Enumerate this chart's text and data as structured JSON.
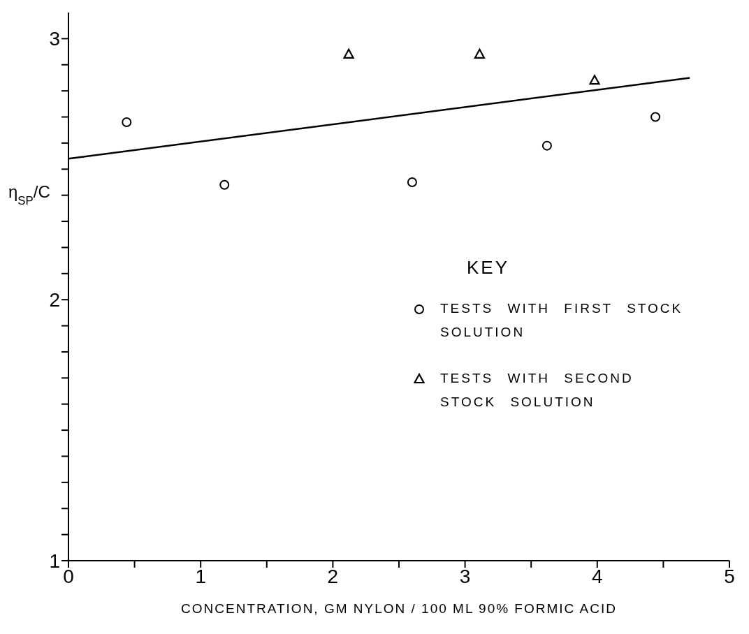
{
  "chart_data": {
    "type": "scatter",
    "xlabel": "CONCENTRATION,  GM NYLON / 100 ML 90% FORMIC ACID",
    "ylabel": "η$_{SP}$/C",
    "legend_title": "KEY",
    "legend": "right",
    "xlim": [
      0,
      5
    ],
    "ylim": [
      1,
      3.1
    ],
    "xticks": [
      0,
      {
        "value": 0.5,
        "label": null
      },
      1,
      {
        "value": 1.5,
        "label": null
      },
      2,
      {
        "value": 2.5,
        "label": null
      },
      3,
      {
        "value": 3.5,
        "label": null
      },
      4,
      {
        "value": 4.5,
        "label": null
      },
      5
    ],
    "yticks": [
      1,
      {
        "value": 1.1,
        "label": null
      },
      {
        "value": 1.2,
        "label": null
      },
      {
        "value": 1.3,
        "label": null
      },
      {
        "value": 1.4,
        "label": null
      },
      {
        "value": 1.5,
        "label": null
      },
      {
        "value": 1.6,
        "label": null
      },
      {
        "value": 1.7,
        "label": null
      },
      {
        "value": 1.8,
        "label": null
      },
      {
        "value": 1.9,
        "label": null
      },
      2,
      {
        "value": 2.1,
        "label": null
      },
      {
        "value": 2.2,
        "label": null
      },
      {
        "value": 2.3,
        "label": null
      },
      {
        "value": 2.4,
        "label": null
      },
      {
        "value": 2.5,
        "label": null
      },
      {
        "value": 2.6,
        "label": null
      },
      {
        "value": 2.7,
        "label": null
      },
      {
        "value": 2.8,
        "label": null
      },
      {
        "value": 2.9,
        "label": null
      },
      3
    ],
    "grid": false,
    "series": [
      {
        "name": "TESTS WITH FIRST STOCK SOLUTION",
        "color": "#000000",
        "marker": "circle",
        "x": [
          0.44,
          1.18,
          2.6,
          3.62,
          4.44
        ],
        "values": [
          2.68,
          2.44,
          2.45,
          2.59,
          2.7
        ]
      },
      {
        "name": "TESTS WITH SECOND STOCK SOLUTION",
        "color": "#000000",
        "marker": "triangle",
        "x": [
          2.12,
          3.11,
          3.98
        ],
        "values": [
          2.94,
          2.94,
          2.84
        ]
      },
      {
        "type": "line",
        "color": "#000000",
        "line_style": "solid",
        "marker": "none",
        "x": [
          0,
          4.7
        ],
        "values": [
          2.54,
          2.85
        ]
      }
    ]
  }
}
